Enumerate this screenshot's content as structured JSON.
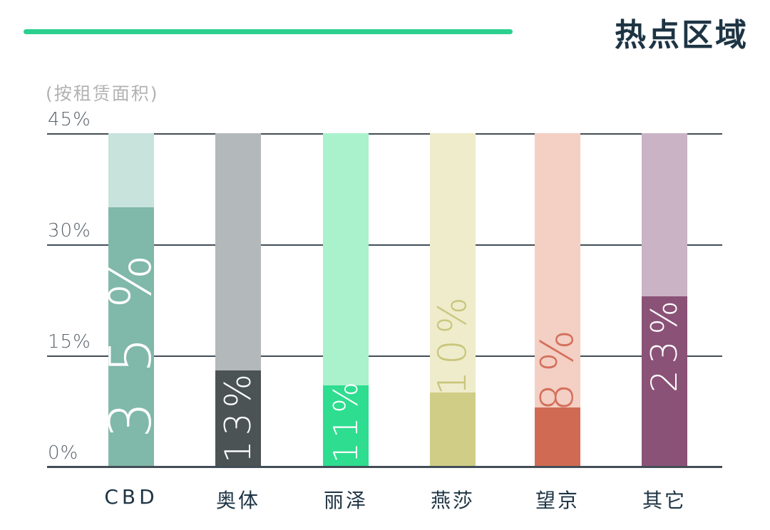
{
  "header": {
    "title": "热点区域",
    "accent_color": "#2bd08f"
  },
  "chart": {
    "subtitle": "(按租赁面积)"
  },
  "chart_data": {
    "type": "bar",
    "title": "热点区域",
    "subtitle_note": "(按租赁面积)",
    "categories": [
      "CBD",
      "奥体",
      "丽泽",
      "燕莎",
      "望京",
      "其它"
    ],
    "values": [
      35,
      13,
      11,
      10,
      8,
      23
    ],
    "value_labels": [
      "35%",
      "13%",
      "11%",
      "10%",
      "8%",
      "23%"
    ],
    "ylim": [
      0,
      45
    ],
    "yticks": [
      45,
      30,
      15,
      0
    ],
    "ytick_labels": [
      "45%",
      "30%",
      "15%",
      "0%"
    ],
    "grid": true,
    "legend": false,
    "bar_style": "value-fill-on-full-height-track",
    "track_colors": [
      "#c8e2dc",
      "#b3b8bb",
      "#a9f2cc",
      "#eeeccb",
      "#f3cfc4",
      "#c9b3c4"
    ],
    "fill_colors": [
      "#80b8a9",
      "#4b5355",
      "#2edd90",
      "#d0cd86",
      "#d06a52",
      "#8b5277"
    ],
    "label_colors": [
      "#ffffff",
      "#ffffff",
      "#ffffff",
      "#c9c57b",
      "#d4705c",
      "#ffffff"
    ],
    "axis_color": "#424d56",
    "text_color": "#1d3444",
    "ytick_color": "#59626a"
  }
}
